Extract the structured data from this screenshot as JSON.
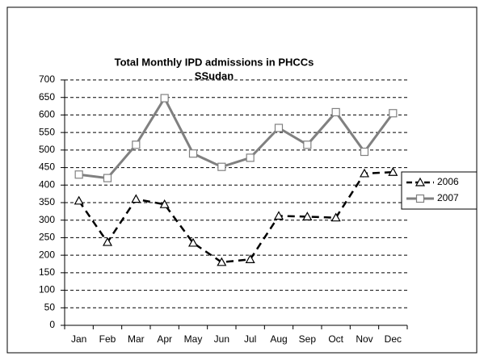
{
  "chart_data": {
    "type": "line",
    "title": [
      "Total Monthly IPD admissions in PHCCs",
      "SSudan"
    ],
    "categories": [
      "Jan",
      "Feb",
      "Mar",
      "Apr",
      "May",
      "Jun",
      "Jul",
      "Aug",
      "Sep",
      "Oct",
      "Nov",
      "Dec"
    ],
    "series": [
      {
        "name": "2006",
        "color": "#000000",
        "dash": true,
        "marker": "triangle",
        "values": [
          355,
          237,
          360,
          345,
          235,
          180,
          188,
          312,
          310,
          307,
          433,
          437
        ]
      },
      {
        "name": "2007",
        "color": "#808080",
        "dash": false,
        "marker": "square",
        "values": [
          430,
          420,
          515,
          648,
          490,
          452,
          478,
          563,
          515,
          608,
          495,
          605
        ]
      }
    ],
    "ylim": [
      0,
      700
    ],
    "yticks": [
      0,
      50,
      100,
      150,
      200,
      250,
      300,
      350,
      400,
      450,
      500,
      550,
      600,
      650,
      700
    ],
    "grid": true,
    "legend": "right"
  }
}
